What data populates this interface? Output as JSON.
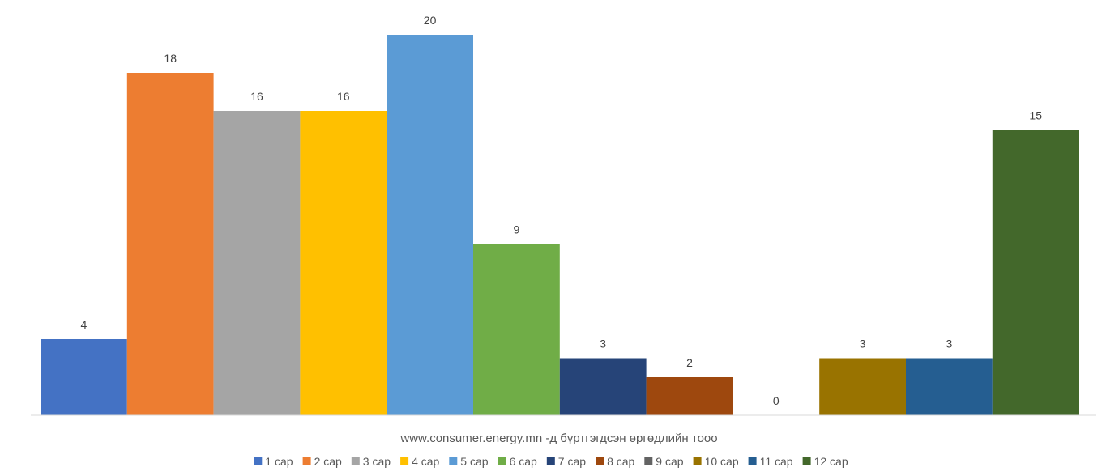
{
  "chart_data": {
    "type": "bar",
    "xlabel": "www.consumer.energy.mn -д бүртгэгдсэн өргөдлийн тооо",
    "ylim": [
      0,
      20
    ],
    "grid": false,
    "legend_position": "bottom",
    "data_labels": true,
    "series": [
      {
        "name": "1 сар",
        "value": 4,
        "color": "#4472C4"
      },
      {
        "name": "2 сар",
        "value": 18,
        "color": "#ED7D31"
      },
      {
        "name": "3 сар",
        "value": 16,
        "color": "#A5A5A5"
      },
      {
        "name": "4 сар",
        "value": 16,
        "color": "#FFC000"
      },
      {
        "name": "5 сар",
        "value": 20,
        "color": "#5B9BD5"
      },
      {
        "name": "6 сар",
        "value": 9,
        "color": "#70AD47"
      },
      {
        "name": "7 сар",
        "value": 3,
        "color": "#264478"
      },
      {
        "name": "8 сар",
        "value": 2,
        "color": "#9E480E"
      },
      {
        "name": "9 сар",
        "value": 0,
        "color": "#636363"
      },
      {
        "name": "10 сар",
        "value": 3,
        "color": "#997300"
      },
      {
        "name": "11 сар",
        "value": 3,
        "color": "#255E91"
      },
      {
        "name": "12 сар",
        "value": 15,
        "color": "#43682B"
      }
    ]
  }
}
